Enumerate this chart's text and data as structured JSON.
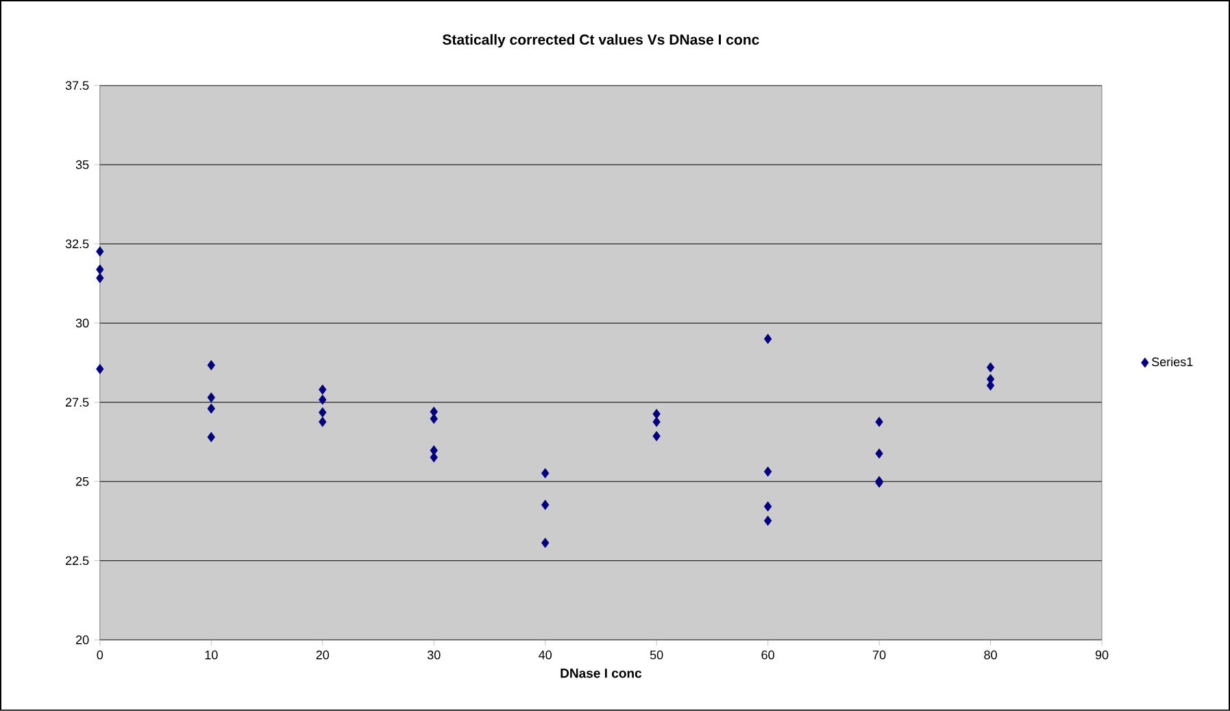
{
  "chart_data": {
    "type": "scatter",
    "title": "Statically corrected Ct values Vs DNase I conc",
    "xlabel": "DNase I conc",
    "series": [
      {
        "name": "Series1",
        "color": "#000080",
        "x": [
          0,
          0,
          0,
          0,
          10,
          10,
          10,
          10,
          20,
          20,
          20,
          20,
          30,
          30,
          30,
          30,
          40,
          40,
          40,
          50,
          50,
          50,
          60,
          60,
          60,
          60,
          70,
          70,
          70,
          70,
          80,
          80,
          80
        ],
        "values": [
          32.26,
          31.69,
          31.42,
          28.55,
          28.67,
          27.65,
          27.3,
          26.4,
          27.9,
          27.58,
          27.18,
          26.88,
          27.2,
          26.98,
          25.98,
          25.76,
          25.26,
          24.26,
          23.06,
          27.13,
          26.88,
          26.43,
          29.5,
          25.31,
          24.21,
          23.76,
          26.88,
          25.88,
          25.01,
          24.96,
          28.6,
          28.23,
          28.03
        ]
      }
    ],
    "xlim": [
      0,
      90
    ],
    "xticks": [
      0,
      10,
      20,
      30,
      40,
      50,
      60,
      70,
      80,
      90
    ],
    "ylim": [
      20,
      37.5
    ],
    "yticks": [
      20,
      22.5,
      25,
      27.5,
      30,
      32.5,
      35,
      37.5
    ],
    "grid": "y",
    "legend": "right",
    "marker": "diamond"
  }
}
